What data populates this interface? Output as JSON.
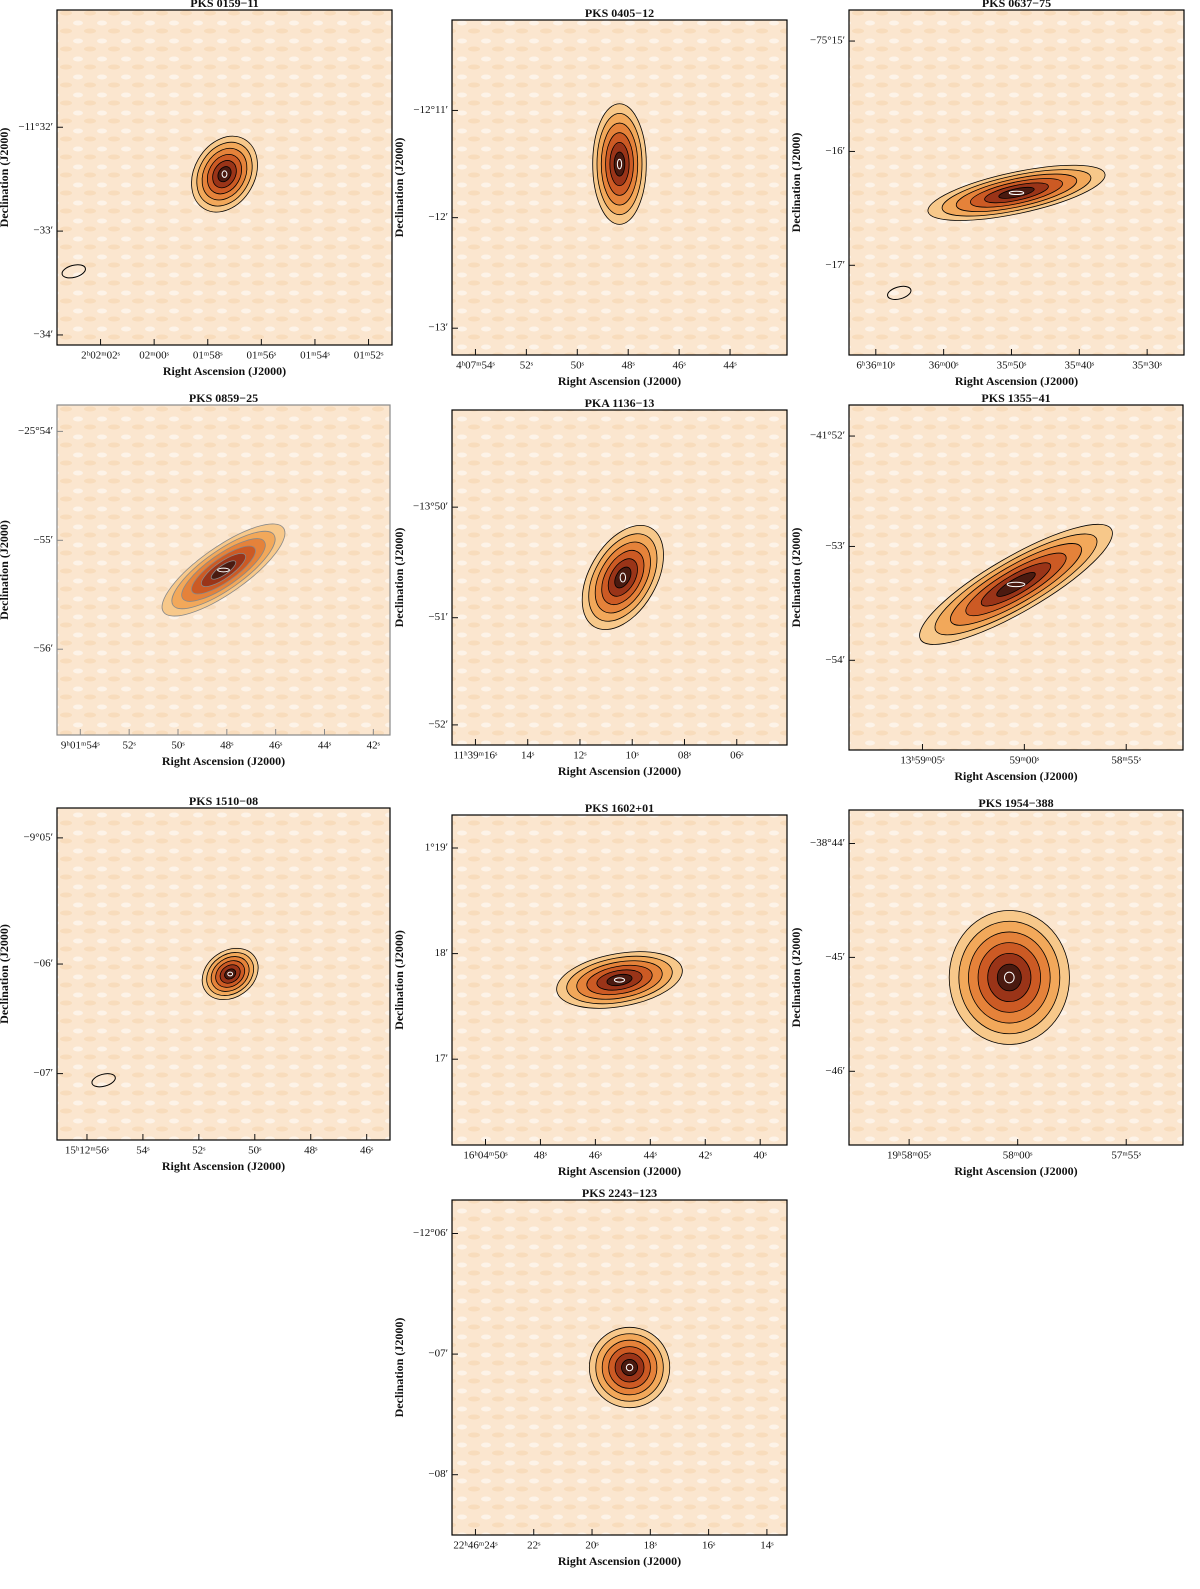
{
  "panels": [
    {
      "title": "PKS 0159−11",
      "xticks": [
        "2ʰ02ᵐ02ˢ",
        "02ᵐ00ˢ",
        "01ᵐ58ˢ",
        "01ᵐ56ˢ",
        "01ᵐ54ˢ",
        "01ᵐ52ˢ"
      ],
      "yticks": [
        "−11°32′",
        "−33′",
        "−34′"
      ],
      "xlabel": "Right Ascension (J2000)",
      "ylabel": "Declination (J2000)"
    },
    {
      "title": "PKS 0405−12",
      "xticks": [
        "4ʰ07ᵐ54ˢ",
        "52ˢ",
        "50ˢ",
        "48ˢ",
        "46ˢ",
        "44ˢ"
      ],
      "yticks": [
        "−12°11′",
        "−12′",
        "−13′"
      ],
      "xlabel": "Right Ascension (J2000)",
      "ylabel": "Declination (J2000)"
    },
    {
      "title": "PKS 0637−75",
      "xticks": [
        "6ʰ36ᵐ10ˢ",
        "36ᵐ00ˢ",
        "35ᵐ50ˢ",
        "35ᵐ40ˢ",
        "35ᵐ30ˢ"
      ],
      "yticks": [
        "−75°15′",
        "−16′",
        "−17′"
      ],
      "xlabel": "Right Ascension (J2000)",
      "ylabel": "Declination (J2000)"
    },
    {
      "title": "PKS 0859−25",
      "xticks": [
        "9ʰ01ᵐ54ˢ",
        "52ˢ",
        "50ˢ",
        "48ˢ",
        "46ˢ",
        "44ˢ",
        "42ˢ"
      ],
      "yticks": [
        "−25°54′",
        "−55′",
        "−56′"
      ],
      "xlabel": "Right Ascension (J2000)",
      "ylabel": "Declination (J2000)"
    },
    {
      "title": "PKA 1136−13",
      "xticks": [
        "11ʰ39ᵐ16ˢ",
        "14ˢ",
        "12ˢ",
        "10ˢ",
        "08ˢ",
        "06ˢ"
      ],
      "yticks": [
        "−13°50′",
        "−51′",
        "−52′"
      ],
      "xlabel": "Right Ascension (J2000)",
      "ylabel": "Declination (J2000)"
    },
    {
      "title": "PKS 1355−41",
      "xticks": [
        "13ʰ59ᵐ05ˢ",
        "59ᵐ00ˢ",
        "58ᵐ55ˢ"
      ],
      "yticks": [
        "−41°52′",
        "−53′",
        "−54′"
      ],
      "xlabel": "Right Ascension (J2000)",
      "ylabel": "Declination (J2000)"
    },
    {
      "title": "PKS 1510−08",
      "xticks": [
        "15ʰ12ᵐ56ˢ",
        "54ˢ",
        "52ˢ",
        "50ˢ",
        "48ˢ",
        "46ˢ"
      ],
      "yticks": [
        "−9°05′",
        "−06′",
        "−07′"
      ],
      "xlabel": "Right Ascension (J2000)",
      "ylabel": "Declination (J2000)"
    },
    {
      "title": "PKS 1602+01",
      "xticks": [
        "16ʰ04ᵐ50ˢ",
        "48ˢ",
        "46ˢ",
        "44ˢ",
        "42ˢ",
        "40ˢ"
      ],
      "yticks": [
        "1°19′",
        "18′",
        "17′"
      ],
      "xlabel": "Right Ascension (J2000)",
      "ylabel": "Declination (J2000)"
    },
    {
      "title": "PKS 1954−388",
      "xticks": [
        "19ʰ58ᵐ05ˢ",
        "58ᵐ00ˢ",
        "57ᵐ55ˢ"
      ],
      "yticks": [
        "−38°44′",
        "−45′",
        "−46′"
      ],
      "xlabel": "Right Ascension (J2000)",
      "ylabel": "Declination (J2000)"
    },
    {
      "title": "PKS 2243−123",
      "xticks": [
        "22ʰ46ᵐ24ˢ",
        "22ˢ",
        "20ˢ",
        "18ˢ",
        "16ˢ",
        "14ˢ"
      ],
      "yticks": [
        "−12°06′",
        "−07′",
        "−08′"
      ],
      "xlabel": "Right Ascension (J2000)",
      "ylabel": "Declination (J2000)"
    }
  ]
}
